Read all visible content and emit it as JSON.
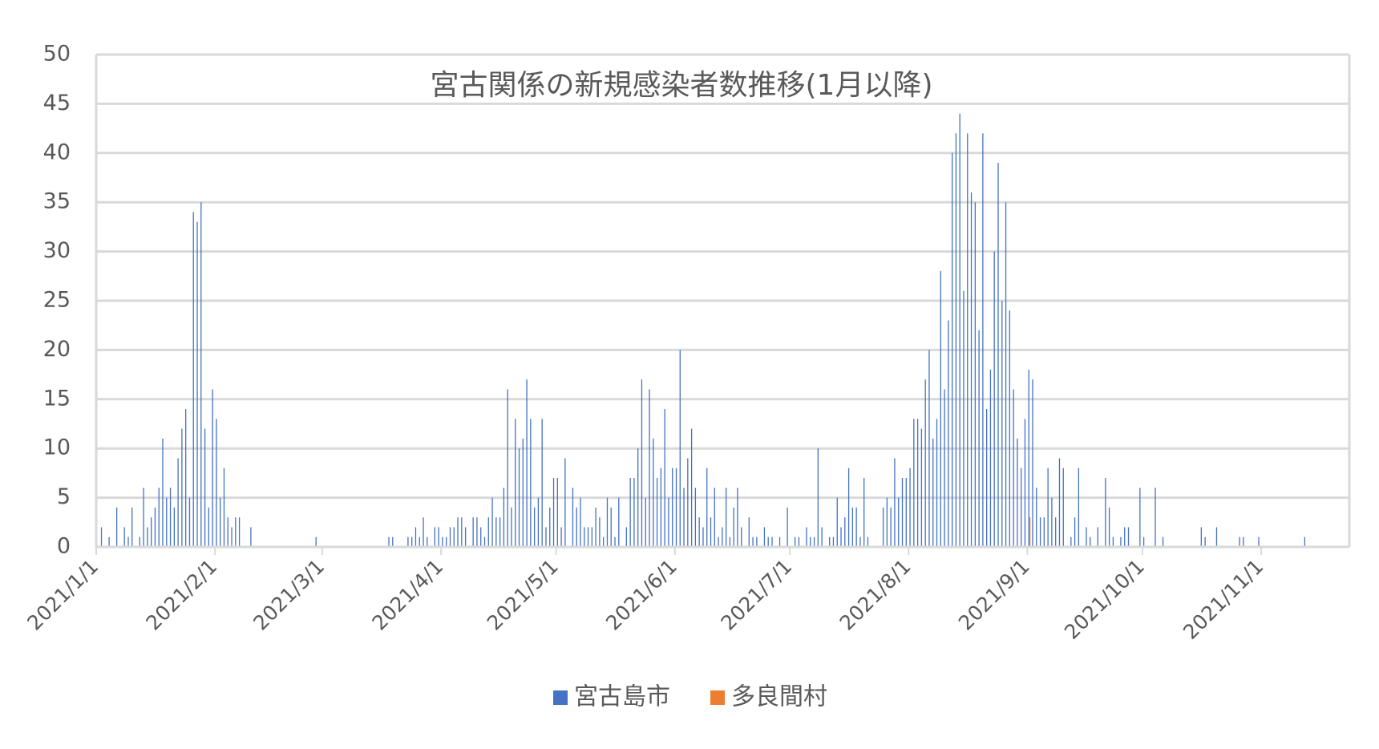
{
  "chart_data": {
    "type": "bar",
    "title": "宮古関係の新規感染者数推移(1月以降)",
    "categories": [
      "2021/1/1",
      null,
      null,
      null,
      null,
      null,
      null,
      null,
      null,
      null,
      null,
      null,
      null,
      null,
      null,
      null,
      null,
      null,
      null,
      null,
      null,
      null,
      null,
      null,
      null,
      null,
      null,
      null,
      null,
      null,
      null,
      "2021/2/1",
      null,
      null,
      null,
      null,
      null,
      null,
      null,
      null,
      null,
      null,
      null,
      null,
      null,
      null,
      null,
      null,
      null,
      null,
      null,
      null,
      null,
      null,
      null,
      null,
      null,
      null,
      null,
      "2021/3/1",
      null,
      null,
      null,
      null,
      null,
      null,
      null,
      null,
      null,
      null,
      null,
      null,
      null,
      null,
      null,
      null,
      null,
      null,
      null,
      null,
      null,
      null,
      null,
      null,
      null,
      null,
      null,
      null,
      null,
      null,
      "2021/4/1",
      null,
      null,
      null,
      null,
      null,
      null,
      null,
      null,
      null,
      null,
      null,
      null,
      null,
      null,
      null,
      null,
      null,
      null,
      null,
      null,
      null,
      null,
      null,
      null,
      null,
      null,
      null,
      null,
      null,
      "2021/5/1",
      null,
      null,
      null,
      null,
      null,
      null,
      null,
      null,
      null,
      null,
      null,
      null,
      null,
      null,
      null,
      null,
      null,
      null,
      null,
      null,
      null,
      null,
      null,
      null,
      null,
      null,
      null,
      null,
      null,
      null,
      "2021/6/1",
      null,
      null,
      null,
      null,
      null,
      null,
      null,
      null,
      null,
      null,
      null,
      null,
      null,
      null,
      null,
      null,
      null,
      null,
      null,
      null,
      null,
      null,
      null,
      null,
      null,
      null,
      null,
      null,
      null,
      "2021/7/1",
      null,
      null,
      null,
      null,
      null,
      null,
      null,
      null,
      null,
      null,
      null,
      null,
      null,
      null,
      null,
      null,
      null,
      null,
      null,
      null,
      null,
      null,
      null,
      null,
      null,
      null,
      null,
      null,
      null,
      null,
      "2021/8/1",
      null,
      null,
      null,
      null,
      null,
      null,
      null,
      null,
      null,
      null,
      null,
      null,
      null,
      null,
      null,
      null,
      null,
      null,
      null,
      null,
      null,
      null,
      null,
      null,
      null,
      null,
      null,
      null,
      null,
      null,
      "2021/9/1",
      null,
      null,
      null,
      null,
      null,
      null,
      null,
      null,
      null,
      null,
      null,
      null,
      null,
      null,
      null,
      null,
      null,
      null,
      null,
      null,
      null,
      null,
      null,
      null,
      null,
      null,
      null,
      null,
      null,
      "2021/10/1",
      null,
      null,
      null,
      null,
      null,
      null,
      null,
      null,
      null,
      null,
      null,
      null,
      null,
      null,
      null,
      null,
      null,
      null,
      null,
      null,
      null,
      null,
      null,
      null,
      null,
      null,
      null,
      null,
      null,
      null,
      "2021/11/1",
      null,
      null,
      null,
      null,
      null,
      null,
      null,
      null,
      null,
      null,
      null,
      null,
      null,
      null,
      null,
      null,
      null,
      null,
      null,
      null,
      null,
      null
    ],
    "series": [
      {
        "name": "宮古島市",
        "color": "#4472c4",
        "values": [
          0,
          2,
          0,
          1,
          0,
          4,
          0,
          2,
          1,
          4,
          0,
          1,
          6,
          2,
          3,
          4,
          6,
          11,
          5,
          6,
          4,
          9,
          12,
          14,
          5,
          34,
          33,
          35,
          12,
          4,
          16,
          13,
          5,
          8,
          3,
          2,
          3,
          3,
          0,
          0,
          2,
          0,
          0,
          0,
          0,
          0,
          0,
          0,
          0,
          0,
          0,
          0,
          0,
          0,
          0,
          0,
          0,
          1,
          0,
          0,
          0,
          0,
          0,
          0,
          0,
          0,
          0,
          0,
          0,
          0,
          0,
          0,
          0,
          0,
          0,
          0,
          1,
          1,
          0,
          0,
          0,
          1,
          1,
          2,
          1,
          3,
          1,
          0,
          2,
          2,
          1,
          1,
          2,
          2,
          3,
          3,
          2,
          0,
          3,
          3,
          2,
          1,
          3,
          5,
          3,
          3,
          6,
          16,
          4,
          13,
          10,
          11,
          17,
          13,
          4,
          5,
          13,
          2,
          4,
          7,
          7,
          2,
          9,
          0,
          6,
          4,
          5,
          2,
          2,
          2,
          4,
          3,
          1,
          5,
          4,
          1,
          5,
          0,
          2,
          7,
          7,
          10,
          17,
          5,
          16,
          11,
          7,
          8,
          14,
          5,
          8,
          8,
          20,
          6,
          9,
          12,
          6,
          3,
          2,
          8,
          3,
          6,
          1,
          2,
          6,
          1,
          4,
          6,
          2,
          0,
          3,
          1,
          1,
          0,
          2,
          1,
          1,
          0,
          1,
          0,
          4,
          0,
          1,
          1,
          0,
          2,
          1,
          1,
          10,
          2,
          0,
          1,
          1,
          5,
          2,
          3,
          8,
          4,
          4,
          1,
          7,
          1,
          0,
          0,
          0,
          4,
          5,
          4,
          9,
          5,
          7,
          7,
          8,
          13,
          13,
          12,
          17,
          20,
          11,
          13,
          28,
          16,
          23,
          40,
          42,
          44,
          26,
          42,
          36,
          35,
          22,
          42,
          14,
          18,
          30,
          39,
          25,
          35,
          24,
          16,
          11,
          8,
          13,
          18,
          17,
          6,
          3,
          3,
          8,
          5,
          3,
          9,
          8,
          0,
          1,
          3,
          8,
          0,
          2,
          1,
          0,
          2,
          0,
          7,
          4,
          1,
          0,
          1,
          2,
          2,
          0,
          0,
          6,
          1,
          0,
          0,
          6,
          0,
          1,
          0,
          0,
          0,
          0,
          0,
          0,
          0,
          0,
          0,
          2,
          1,
          0,
          0,
          2,
          0,
          0,
          0,
          0,
          0,
          1,
          1,
          0,
          0,
          0,
          1,
          0,
          0,
          0,
          0,
          0,
          0,
          0,
          0,
          0,
          0,
          0,
          1,
          0,
          0,
          0,
          0,
          0,
          0,
          0,
          0,
          0,
          0,
          0
        ]
      },
      {
        "name": "多良間村",
        "color": "#ed7d31",
        "values": [
          0,
          0,
          0,
          0,
          0,
          0,
          0,
          0,
          0,
          0,
          0,
          0,
          0,
          0,
          0,
          0,
          0,
          0,
          0,
          0,
          0,
          0,
          0,
          0,
          0,
          0,
          0,
          0,
          0,
          0,
          0,
          0,
          0,
          0,
          0,
          0,
          0,
          0,
          0,
          0,
          0,
          0,
          0,
          0,
          0,
          0,
          0,
          0,
          0,
          0,
          0,
          0,
          0,
          0,
          0,
          0,
          0,
          0,
          0,
          0,
          0,
          0,
          0,
          0,
          0,
          0,
          0,
          0,
          0,
          0,
          0,
          0,
          0,
          0,
          0,
          0,
          0,
          0,
          0,
          0,
          0,
          0,
          0,
          0,
          0,
          0,
          0,
          0,
          0,
          0,
          0,
          0,
          0,
          0,
          0,
          0,
          0,
          0,
          0,
          0,
          0,
          0,
          0,
          0,
          0,
          0,
          0,
          0,
          0,
          0,
          0,
          0,
          0,
          0,
          0,
          0,
          0,
          0,
          0,
          0,
          0,
          0,
          0,
          0,
          0,
          0,
          0,
          0,
          0,
          0,
          0,
          0,
          0,
          0,
          0,
          0,
          0,
          0,
          0,
          0,
          0,
          0,
          0,
          0,
          0,
          0,
          0,
          0,
          0,
          0,
          0,
          0,
          0,
          0,
          0,
          0,
          0,
          0,
          0,
          0,
          0,
          0,
          0,
          0,
          0,
          0,
          0,
          0,
          0,
          0,
          0,
          0,
          0,
          0,
          0,
          0,
          0,
          0,
          0,
          0,
          0,
          0,
          0,
          0,
          0,
          0,
          0,
          0,
          0,
          0,
          0,
          0,
          0,
          0,
          0,
          0,
          0,
          0,
          0,
          0,
          0,
          0,
          0,
          0,
          0,
          0,
          0,
          0,
          0,
          0,
          0,
          0,
          0,
          0,
          0,
          0,
          0,
          0,
          0,
          0,
          0,
          0,
          0,
          0,
          0,
          0,
          0,
          0,
          0,
          0,
          0,
          0,
          0,
          0,
          0,
          0,
          0,
          0,
          0,
          0,
          0,
          0,
          0,
          3,
          0,
          0,
          0,
          0,
          0,
          0,
          0,
          0,
          0,
          0,
          0,
          0,
          0,
          0,
          0,
          0,
          0,
          0,
          0,
          0,
          0,
          0,
          0,
          0,
          0,
          0,
          0,
          0,
          0,
          0,
          0,
          0,
          0,
          0,
          0,
          0,
          0,
          0,
          0,
          0,
          0,
          0,
          0,
          0,
          0,
          0,
          0,
          0,
          0,
          0,
          0,
          0,
          0,
          0,
          0,
          0,
          0,
          0,
          0,
          0,
          0,
          0,
          0,
          0,
          0,
          0,
          0,
          0,
          0,
          0,
          0,
          0,
          0,
          0,
          0,
          0,
          0,
          0,
          0,
          0,
          0,
          0,
          0
        ]
      }
    ],
    "ylim": [
      0,
      50
    ],
    "yticks": [
      0,
      5,
      10,
      15,
      20,
      25,
      30,
      35,
      40,
      45,
      50
    ],
    "grid": true,
    "legend": "bottom"
  }
}
